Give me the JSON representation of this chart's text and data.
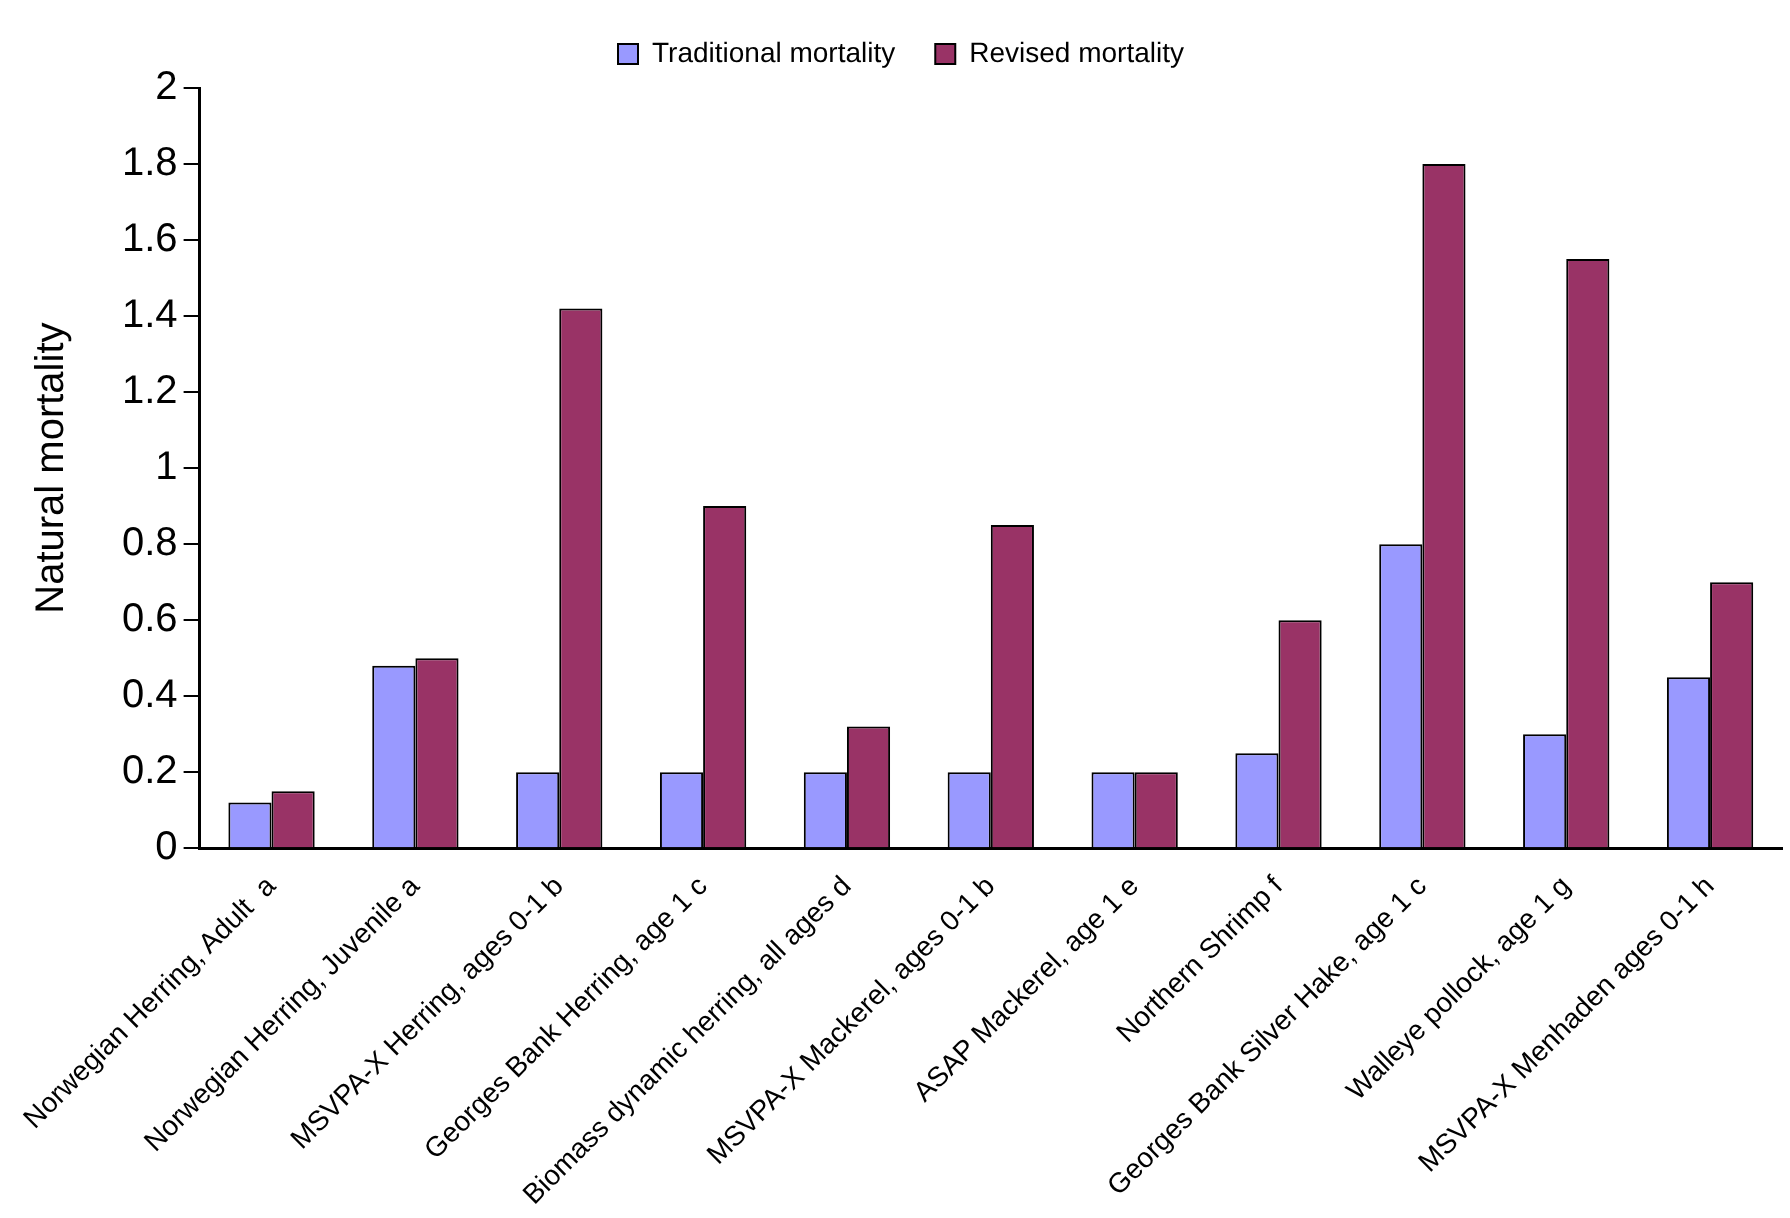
{
  "chart_data": {
    "type": "bar",
    "ylabel": "Natural mortality",
    "categories": [
      "Norwegian Herring, Adult  a",
      "Norwegian Herring, Juvenile a",
      "MSVPA-X Herring, ages 0-1 b",
      "Georges Bank Herring, age 1 c",
      "Biomass dynamic herring, all ages d",
      "MSVPA-X Mackerel, ages 0-1 b",
      "ASAP Mackerel, age 1 e",
      "Northern Shrimp f",
      "Georges Bank Silver Hake, age 1 c",
      "Walleye pollock, age 1 g",
      "MSVPA-X Menhaden ages 0-1 h"
    ],
    "series": [
      {
        "name": "Traditional mortality",
        "color": "#9999ff",
        "values": [
          0.12,
          0.48,
          0.2,
          0.2,
          0.2,
          0.2,
          0.2,
          0.25,
          0.8,
          0.3,
          0.45
        ]
      },
      {
        "name": "Revised mortality",
        "color": "#993366",
        "values": [
          0.15,
          0.5,
          1.42,
          0.9,
          0.32,
          0.85,
          0.2,
          0.6,
          1.8,
          1.55,
          0.7
        ]
      }
    ],
    "ylim": [
      0,
      2
    ],
    "yticks": [
      0,
      0.2,
      0.4,
      0.6,
      0.8,
      1,
      1.2,
      1.4,
      1.6,
      1.8,
      2
    ],
    "grid": false,
    "legend": "top"
  }
}
